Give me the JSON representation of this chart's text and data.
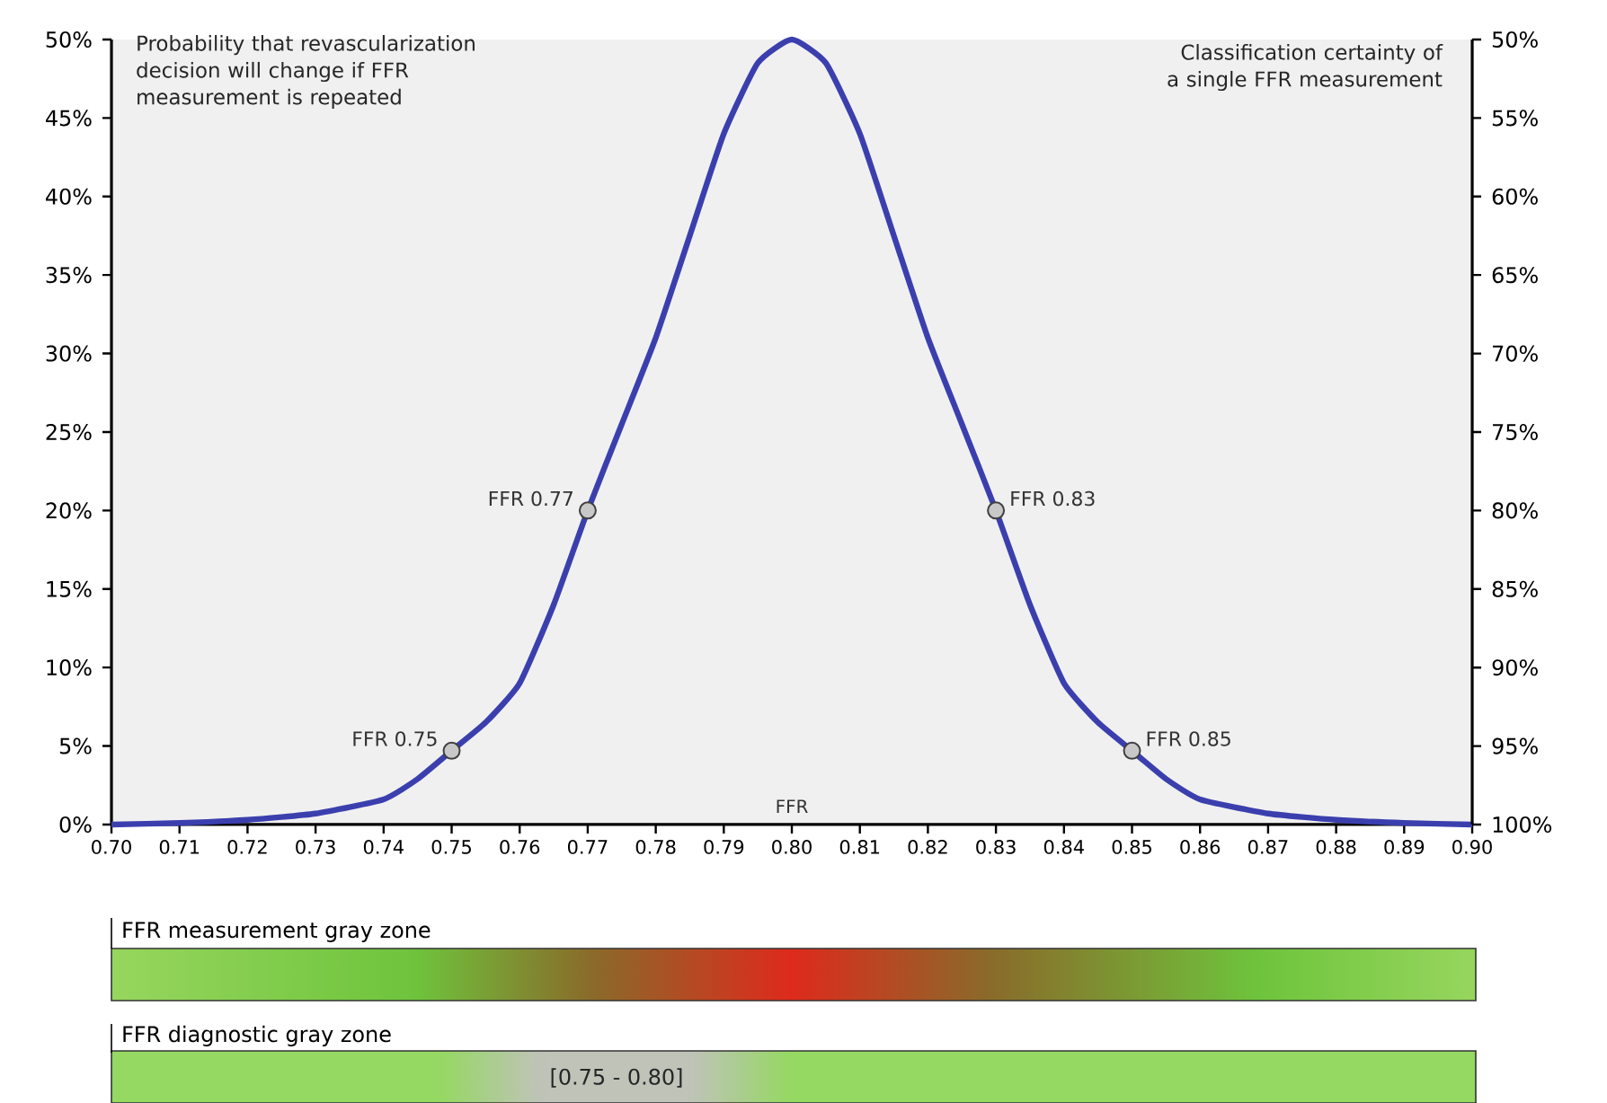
{
  "chart_data": {
    "type": "line",
    "xlabel": "FFR",
    "ylabel": "Probability that revascularization decision will change if FFR measurement is repeated",
    "y2label": "Classification certainty of a single FFR measurement",
    "xlim": [
      0.7,
      0.9
    ],
    "xticks": [
      {
        "value": 0.7,
        "label": "0.70"
      },
      {
        "value": 0.71,
        "label": "0.71"
      },
      {
        "value": 0.72,
        "label": "0.72"
      },
      {
        "value": 0.73,
        "label": "0.73"
      },
      {
        "value": 0.74,
        "label": "0.74"
      },
      {
        "value": 0.75,
        "label": "0.75"
      },
      {
        "value": 0.76,
        "label": "0.76"
      },
      {
        "value": 0.77,
        "label": "0.77"
      },
      {
        "value": 0.78,
        "label": "0.78"
      },
      {
        "value": 0.79,
        "label": "0.79"
      },
      {
        "value": 0.8,
        "label": "0.80"
      },
      {
        "value": 0.81,
        "label": "0.81"
      },
      {
        "value": 0.82,
        "label": "0.82"
      },
      {
        "value": 0.83,
        "label": "0.83"
      },
      {
        "value": 0.84,
        "label": "0.84"
      },
      {
        "value": 0.85,
        "label": "0.85"
      },
      {
        "value": 0.86,
        "label": "0.86"
      },
      {
        "value": 0.87,
        "label": "0.87"
      },
      {
        "value": 0.88,
        "label": "0.88"
      },
      {
        "value": 0.89,
        "label": "0.89"
      },
      {
        "value": 0.9,
        "label": "0.90"
      }
    ],
    "ylim": [
      0,
      50
    ],
    "yticks": [
      {
        "value": 0,
        "label": "0%"
      },
      {
        "value": 5,
        "label": "5%"
      },
      {
        "value": 10,
        "label": "10%"
      },
      {
        "value": 15,
        "label": "15%"
      },
      {
        "value": 20,
        "label": "20%"
      },
      {
        "value": 25,
        "label": "25%"
      },
      {
        "value": 30,
        "label": "30%"
      },
      {
        "value": 35,
        "label": "35%"
      },
      {
        "value": 40,
        "label": "40%"
      },
      {
        "value": 45,
        "label": "45%"
      },
      {
        "value": 50,
        "label": "50%"
      }
    ],
    "y2lim": [
      100,
      50
    ],
    "y2ticks": [
      {
        "value": 50,
        "label": "50%"
      },
      {
        "value": 55,
        "label": "55%"
      },
      {
        "value": 60,
        "label": "60%"
      },
      {
        "value": 65,
        "label": "65%"
      },
      {
        "value": 70,
        "label": "70%"
      },
      {
        "value": 75,
        "label": "75%"
      },
      {
        "value": 80,
        "label": "80%"
      },
      {
        "value": 85,
        "label": "85%"
      },
      {
        "value": 90,
        "label": "90%"
      },
      {
        "value": 95,
        "label": "95%"
      },
      {
        "value": 100,
        "label": "100%"
      }
    ],
    "series": [
      {
        "color": "#3b3fae",
        "x": [
          0.7,
          0.71,
          0.72,
          0.73,
          0.74,
          0.745,
          0.75,
          0.755,
          0.76,
          0.765,
          0.77,
          0.775,
          0.78,
          0.785,
          0.79,
          0.795,
          0.8,
          0.805,
          0.81,
          0.815,
          0.82,
          0.825,
          0.83,
          0.835,
          0.84,
          0.845,
          0.85,
          0.855,
          0.86,
          0.87,
          0.88,
          0.89,
          0.9
        ],
        "values": [
          0,
          0.1,
          0.3,
          0.7,
          1.6,
          2.9,
          4.7,
          6.5,
          9,
          14,
          20,
          25.5,
          31,
          37.5,
          44,
          48.5,
          50,
          48.5,
          44,
          37.5,
          31,
          25.5,
          20,
          14,
          9,
          6.5,
          4.7,
          2.9,
          1.6,
          0.7,
          0.3,
          0.1,
          0
        ]
      },
      {
        "type": "scatter",
        "color": "#c8c8c8",
        "marker": "circle",
        "x": [
          0.75,
          0.77,
          0.83,
          0.85
        ],
        "values": [
          4.7,
          20,
          20,
          4.7
        ]
      }
    ],
    "annotations": [
      {
        "text": "FFR 0.75",
        "x": 0.75,
        "y": 4.7
      },
      {
        "text": "FFR 0.77",
        "x": 0.77,
        "y": 20
      },
      {
        "text": "FFR 0.83",
        "x": 0.83,
        "y": 20
      },
      {
        "text": "FFR 0.85",
        "x": 0.85,
        "y": 4.7
      },
      "FFR measurement gray zone",
      "FFR diagnostic gray zone",
      "[0.75 - 0.80]"
    ]
  }
}
